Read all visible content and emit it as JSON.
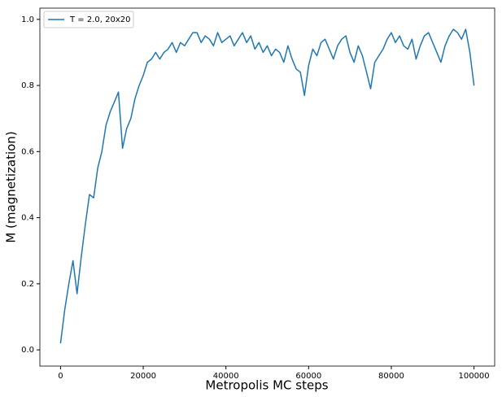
{
  "chart_data": {
    "type": "line",
    "x_label": "Metropolis MC steps",
    "y_label": "M (magnetization)",
    "x": [
      0,
      1000,
      2000,
      3000,
      4000,
      5000,
      6000,
      7000,
      8000,
      9000,
      10000,
      11000,
      12000,
      13000,
      14000,
      15000,
      16000,
      17000,
      18000,
      19000,
      20000,
      21000,
      22000,
      23000,
      24000,
      25000,
      26000,
      27000,
      28000,
      29000,
      30000,
      31000,
      32000,
      33000,
      34000,
      35000,
      36000,
      37000,
      38000,
      39000,
      40000,
      41000,
      42000,
      43000,
      44000,
      45000,
      46000,
      47000,
      48000,
      49000,
      50000,
      51000,
      52000,
      53000,
      54000,
      55000,
      56000,
      57000,
      58000,
      59000,
      60000,
      61000,
      62000,
      63000,
      64000,
      65000,
      66000,
      67000,
      68000,
      69000,
      70000,
      71000,
      72000,
      73000,
      74000,
      75000,
      76000,
      77000,
      78000,
      79000,
      80000,
      81000,
      82000,
      83000,
      84000,
      85000,
      86000,
      87000,
      88000,
      89000,
      90000,
      91000,
      92000,
      93000,
      94000,
      95000,
      96000,
      97000,
      98000,
      99000,
      100000
    ],
    "series": [
      {
        "name": "T = 2.0, 20x20",
        "color": "#1f77b4",
        "values": [
          0.02,
          0.12,
          0.2,
          0.27,
          0.17,
          0.28,
          0.38,
          0.47,
          0.46,
          0.55,
          0.6,
          0.68,
          0.72,
          0.75,
          0.78,
          0.61,
          0.67,
          0.7,
          0.76,
          0.8,
          0.83,
          0.87,
          0.88,
          0.9,
          0.88,
          0.9,
          0.91,
          0.93,
          0.9,
          0.93,
          0.92,
          0.94,
          0.96,
          0.96,
          0.93,
          0.95,
          0.94,
          0.92,
          0.96,
          0.93,
          0.94,
          0.95,
          0.92,
          0.94,
          0.96,
          0.93,
          0.95,
          0.91,
          0.93,
          0.9,
          0.92,
          0.89,
          0.91,
          0.9,
          0.87,
          0.92,
          0.88,
          0.85,
          0.84,
          0.77,
          0.86,
          0.91,
          0.89,
          0.93,
          0.94,
          0.91,
          0.88,
          0.92,
          0.94,
          0.95,
          0.9,
          0.87,
          0.92,
          0.89,
          0.84,
          0.79,
          0.87,
          0.89,
          0.91,
          0.94,
          0.96,
          0.93,
          0.95,
          0.92,
          0.91,
          0.94,
          0.88,
          0.92,
          0.95,
          0.96,
          0.93,
          0.9,
          0.87,
          0.92,
          0.95,
          0.97,
          0.96,
          0.94,
          0.97,
          0.9,
          0.8
        ]
      }
    ],
    "xlim": [
      -5000,
      105000
    ],
    "ylim": [
      -0.049,
      1.034
    ],
    "xticks": [
      0,
      20000,
      40000,
      60000,
      80000,
      100000
    ],
    "yticks": [
      {
        "value": 0,
        "label": "0.0"
      },
      {
        "value": 0.2,
        "label": "0.2"
      },
      {
        "value": 0.4,
        "label": "0.4"
      },
      {
        "value": 0.6,
        "label": "0.6"
      },
      {
        "value": 0.8,
        "label": "0.8"
      },
      {
        "value": 1,
        "label": "1.0"
      }
    ],
    "legend": "upper left"
  }
}
